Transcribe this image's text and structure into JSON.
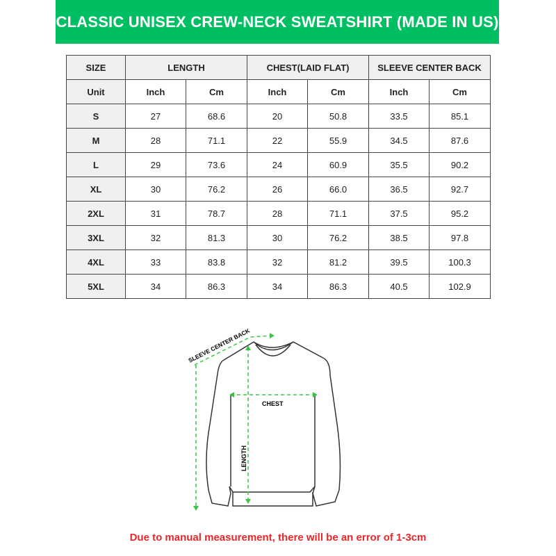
{
  "title": "CLASSIC UNISEX CREW-NECK SWEATSHIRT (MADE IN US)",
  "colors": {
    "banner": "#00bf63",
    "note": "#e8262b",
    "measure_lines": "#3ec24a"
  },
  "table": {
    "group_headers": [
      "SIZE",
      "LENGTH",
      "CHEST(LAID FLAT)",
      "SLEEVE CENTER BACK"
    ],
    "unit_row": [
      "Unit",
      "Inch",
      "Cm",
      "Inch",
      "Cm",
      "Inch",
      "Cm"
    ],
    "rows": [
      [
        "S",
        "27",
        "68.6",
        "20",
        "50.8",
        "33.5",
        "85.1"
      ],
      [
        "M",
        "28",
        "71.1",
        "22",
        "55.9",
        "34.5",
        "87.6"
      ],
      [
        "L",
        "29",
        "73.6",
        "24",
        "60.9",
        "35.5",
        "90.2"
      ],
      [
        "XL",
        "30",
        "76.2",
        "26",
        "66.0",
        "36.5",
        "92.7"
      ],
      [
        "2XL",
        "31",
        "78.7",
        "28",
        "71.1",
        "37.5",
        "95.2"
      ],
      [
        "3XL",
        "32",
        "81.3",
        "30",
        "76.2",
        "38.5",
        "97.8"
      ],
      [
        "4XL",
        "33",
        "83.8",
        "32",
        "81.2",
        "39.5",
        "100.3"
      ],
      [
        "5XL",
        "34",
        "86.3",
        "34",
        "86.3",
        "40.5",
        "102.9"
      ]
    ]
  },
  "diagram": {
    "sleeve_label": "SLEEVE CENTER BACK",
    "chest_label": "CHEST",
    "length_label": "LENGTH"
  },
  "note": "Due to manual measurement, there will be an error of 1-3cm"
}
